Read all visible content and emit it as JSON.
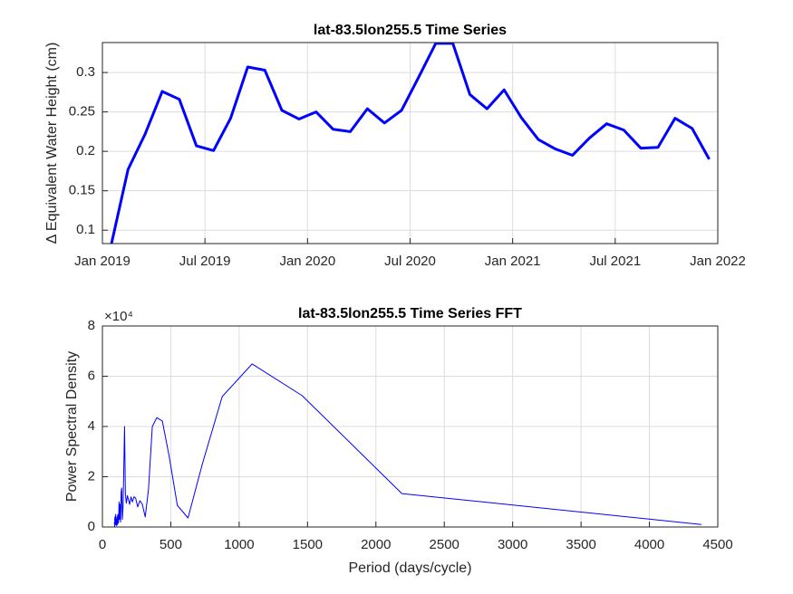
{
  "chart_data": [
    {
      "type": "line",
      "title": "lat-83.5lon255.5 Time Series",
      "ylabel": "Δ Equivalent Water Height (cm)",
      "x": [
        "2019-01",
        "2019-02",
        "2019-03",
        "2019-04",
        "2019-05",
        "2019-06",
        "2019-07",
        "2019-08",
        "2019-09",
        "2019-10",
        "2019-11",
        "2019-12",
        "2020-01",
        "2020-02",
        "2020-03",
        "2020-04",
        "2020-05",
        "2020-06",
        "2020-07",
        "2020-08",
        "2020-09",
        "2020-10",
        "2020-11",
        "2020-12",
        "2021-01",
        "2021-02",
        "2021-03",
        "2021-04",
        "2021-05",
        "2021-06",
        "2021-07",
        "2021-08",
        "2021-09",
        "2021-10",
        "2021-11",
        "2021-12"
      ],
      "values": [
        0.08,
        0.177,
        0.222,
        0.276,
        0.266,
        0.207,
        0.201,
        0.242,
        0.307,
        0.303,
        0.252,
        0.241,
        0.25,
        0.228,
        0.225,
        0.254,
        0.236,
        0.252,
        0.294,
        0.337,
        0.337,
        0.272,
        0.254,
        0.278,
        0.243,
        0.215,
        0.203,
        0.195,
        0.217,
        0.235,
        0.227,
        0.204,
        0.205,
        0.242,
        0.229,
        0.19
      ],
      "color": "#0000ff",
      "linewidth": 3,
      "xlim": [
        "2019-01",
        "2022-01"
      ],
      "xticks": [
        {
          "value": "2019-01",
          "label": "Jan 2019"
        },
        {
          "value": "2019-07",
          "label": "Jul 2019"
        },
        {
          "value": "2020-01",
          "label": "Jan 2020"
        },
        {
          "value": "2020-07",
          "label": "Jul 2020"
        },
        {
          "value": "2021-01",
          "label": "Jan 2021"
        },
        {
          "value": "2021-07",
          "label": "Jul 2021"
        },
        {
          "value": "2022-01",
          "label": "Jan 2022"
        }
      ],
      "ylim": [
        0.083,
        0.338
      ],
      "yticks": [
        0.1,
        0.15,
        0.2,
        0.25,
        0.3
      ],
      "grid": true
    },
    {
      "type": "line",
      "title": "lat-83.5lon255.5 Time Series FFT",
      "xlabel": "Period (days/cycle)",
      "ylabel": "Power Spectral Density",
      "y_exponent_label": "×10⁴",
      "x": [
        4380,
        2190,
        1460,
        1095,
        876,
        730,
        626,
        548,
        487,
        438,
        398,
        365,
        337,
        313,
        292,
        274,
        258,
        243,
        231,
        219,
        209,
        199,
        190,
        183,
        175,
        168,
        162,
        156,
        151,
        146,
        141,
        137,
        133,
        129,
        125,
        122,
        118,
        115,
        112,
        110,
        107,
        104,
        102,
        100,
        97,
        95,
        93,
        91,
        89,
        88
      ],
      "values": [
        1000,
        13300,
        52300,
        64900,
        51900,
        24900,
        3600,
        8600,
        28500,
        42200,
        43500,
        40000,
        15000,
        4000,
        9000,
        10500,
        8000,
        11500,
        12000,
        10000,
        12000,
        9000,
        11000,
        12500,
        9500,
        13000,
        40000,
        22000,
        8000,
        3000,
        15500,
        14000,
        2000,
        9000,
        3000,
        10000,
        2000,
        1500,
        5000,
        1000,
        4000,
        500,
        3000,
        1000,
        5000,
        1500,
        800,
        4000,
        300,
        2000
      ],
      "color": "#0000ff",
      "linewidth": 1,
      "xlim": [
        0,
        4500
      ],
      "xticks": [
        0,
        500,
        1000,
        1500,
        2000,
        2500,
        3000,
        3500,
        4000,
        4500
      ],
      "ylim": [
        0,
        80000
      ],
      "yticks": [
        {
          "value": 0,
          "label": "0"
        },
        {
          "value": 20000,
          "label": "2"
        },
        {
          "value": 40000,
          "label": "4"
        },
        {
          "value": 60000,
          "label": "6"
        },
        {
          "value": 80000,
          "label": "8"
        }
      ],
      "grid": true
    }
  ]
}
